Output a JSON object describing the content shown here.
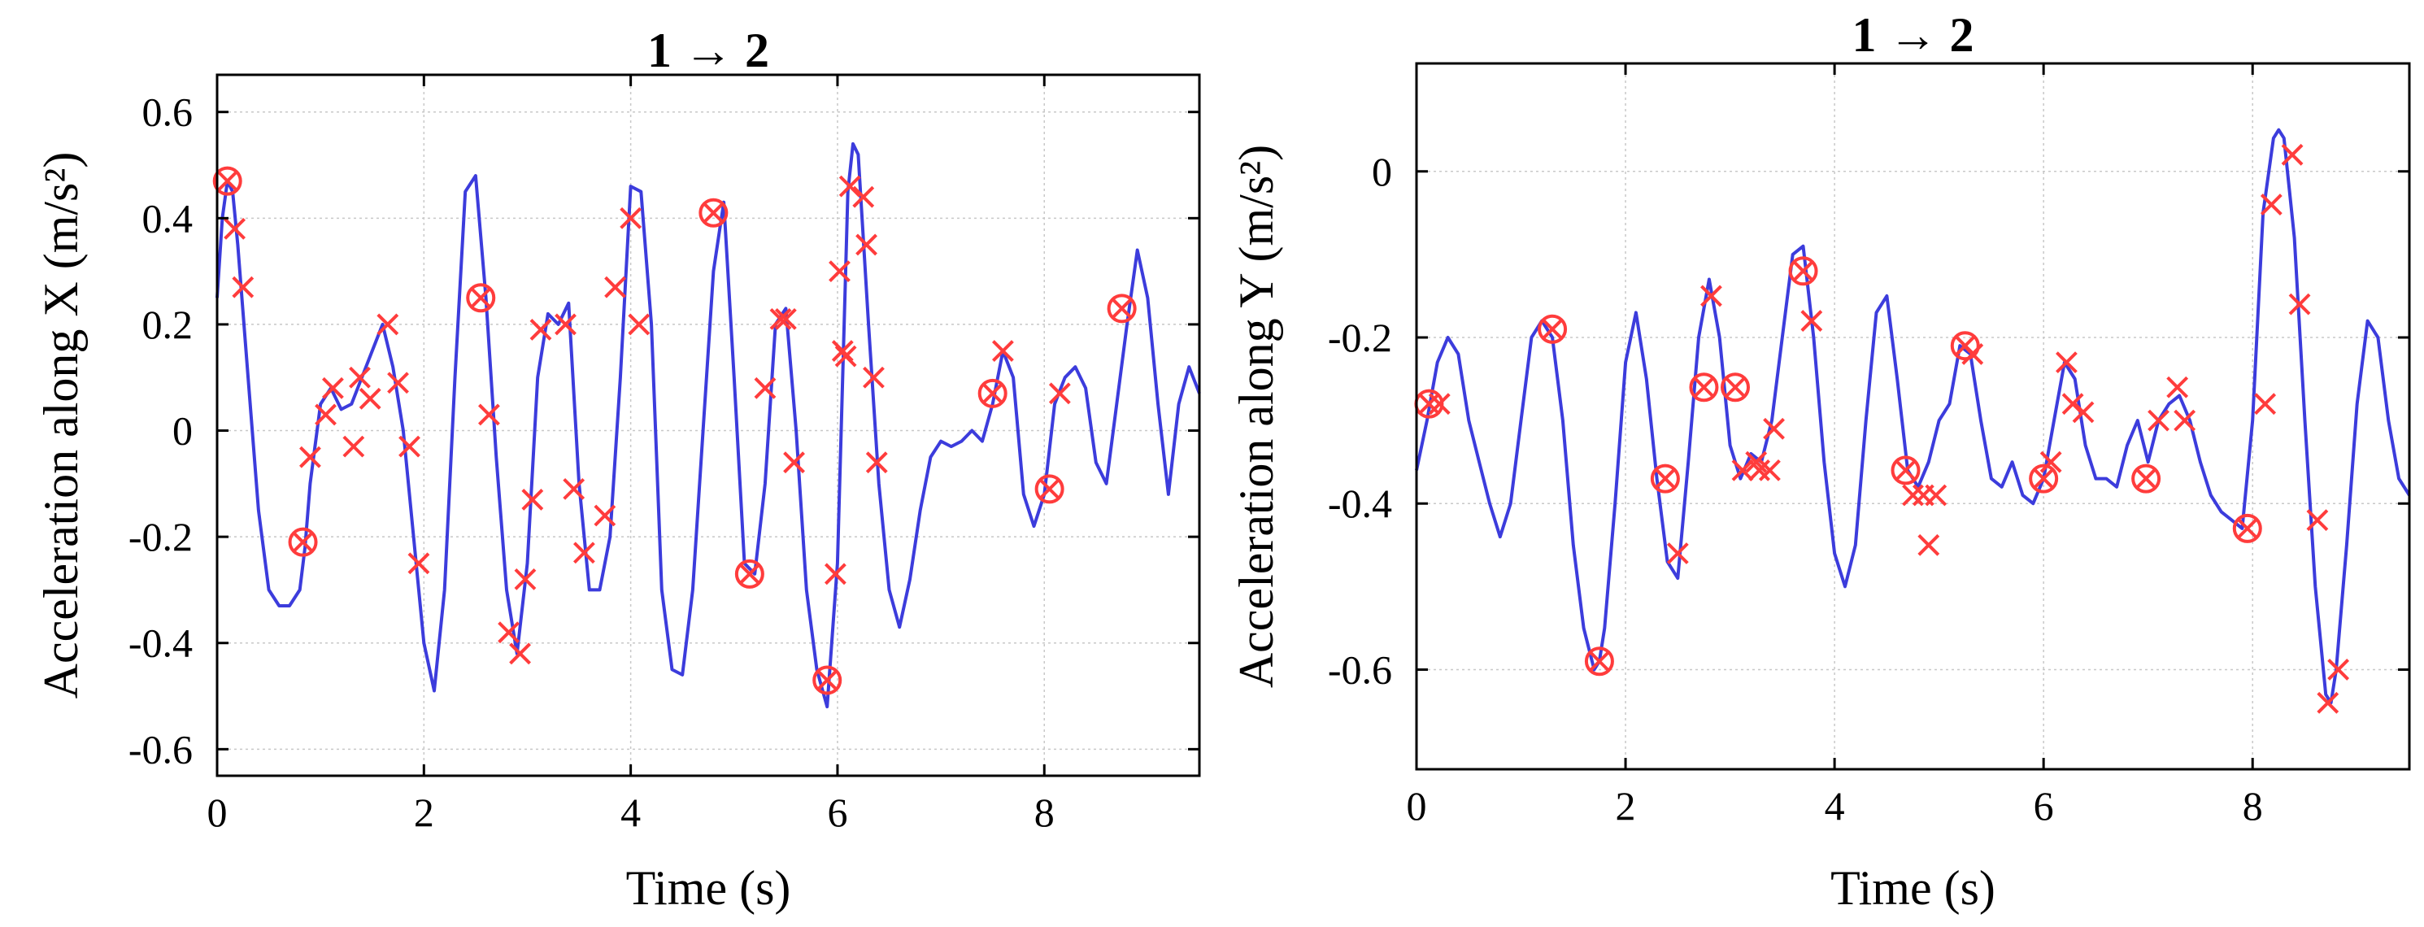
{
  "colors": {
    "line": "#3c3cdc",
    "marker": "#ff3c3c",
    "grid": "#c8c8c8",
    "axes": "#000000"
  },
  "chart_data": [
    {
      "type": "line",
      "title": "1 → 2",
      "xlabel": "Time (s)",
      "ylabel": "Acceleration along X (m/s²)",
      "xlim": [
        0,
        9.5
      ],
      "ylim": [
        -0.65,
        0.67
      ],
      "xticks": [
        0,
        2,
        4,
        6,
        8
      ],
      "xtick_labels": [
        "0",
        "2",
        "4",
        "6",
        "8"
      ],
      "yticks": [
        -0.6,
        -0.4,
        -0.2,
        0,
        0.2,
        0.4,
        0.6
      ],
      "ytick_labels": [
        "-0.6",
        "-0.4",
        "-0.2",
        "0",
        "0.2",
        "0.4",
        "0.6"
      ],
      "grid": true,
      "series": [
        {
          "style": "line",
          "x": [
            0,
            0.05,
            0.1,
            0.15,
            0.2,
            0.3,
            0.4,
            0.5,
            0.6,
            0.7,
            0.8,
            0.85,
            0.9,
            1.0,
            1.1,
            1.2,
            1.3,
            1.4,
            1.5,
            1.6,
            1.7,
            1.8,
            1.9,
            2.0,
            2.1,
            2.2,
            2.3,
            2.4,
            2.5,
            2.6,
            2.7,
            2.8,
            2.9,
            3.0,
            3.1,
            3.2,
            3.3,
            3.4,
            3.5,
            3.6,
            3.7,
            3.8,
            3.9,
            4.0,
            4.1,
            4.2,
            4.3,
            4.4,
            4.5,
            4.6,
            4.7,
            4.8,
            4.9,
            5.0,
            5.1,
            5.2,
            5.3,
            5.4,
            5.5,
            5.6,
            5.7,
            5.8,
            5.9,
            6.0,
            6.1,
            6.15,
            6.2,
            6.3,
            6.4,
            6.5,
            6.6,
            6.7,
            6.8,
            6.9,
            7.0,
            7.1,
            7.2,
            7.3,
            7.4,
            7.5,
            7.6,
            7.7,
            7.8,
            7.9,
            8.0,
            8.1,
            8.2,
            8.3,
            8.4,
            8.5,
            8.6,
            8.7,
            8.8,
            8.9,
            9.0,
            9.1,
            9.2,
            9.3,
            9.4,
            9.5
          ],
          "y": [
            0.25,
            0.4,
            0.47,
            0.45,
            0.35,
            0.1,
            -0.15,
            -0.3,
            -0.33,
            -0.33,
            -0.3,
            -0.22,
            -0.1,
            0.05,
            0.08,
            0.04,
            0.05,
            0.1,
            0.15,
            0.2,
            0.12,
            0.0,
            -0.2,
            -0.4,
            -0.49,
            -0.3,
            0.1,
            0.45,
            0.48,
            0.25,
            -0.05,
            -0.3,
            -0.42,
            -0.25,
            0.1,
            0.22,
            0.2,
            0.24,
            -0.1,
            -0.3,
            -0.3,
            -0.2,
            0.1,
            0.46,
            0.45,
            0.2,
            -0.3,
            -0.45,
            -0.46,
            -0.3,
            0.0,
            0.3,
            0.43,
            0.1,
            -0.25,
            -0.27,
            -0.1,
            0.2,
            0.23,
            0.0,
            -0.3,
            -0.45,
            -0.52,
            -0.25,
            0.45,
            0.54,
            0.52,
            0.2,
            -0.1,
            -0.3,
            -0.37,
            -0.28,
            -0.15,
            -0.05,
            -0.02,
            -0.03,
            -0.02,
            0.0,
            -0.02,
            0.05,
            0.15,
            0.1,
            -0.12,
            -0.18,
            -0.12,
            0.05,
            0.1,
            0.12,
            0.08,
            -0.06,
            -0.1,
            0.05,
            0.2,
            0.34,
            0.25,
            0.05,
            -0.12,
            0.05,
            0.12,
            0.07
          ]
        },
        {
          "style": "circle-x",
          "x": [
            0.1,
            0.83,
            2.55,
            4.8,
            5.15,
            5.9,
            7.5,
            8.05,
            8.75
          ],
          "y": [
            0.47,
            -0.21,
            0.25,
            0.41,
            -0.27,
            -0.47,
            0.07,
            -0.11,
            0.23
          ]
        },
        {
          "style": "x",
          "x": [
            0.17,
            0.25,
            0.9,
            1.05,
            1.12,
            1.32,
            1.38,
            1.48,
            1.65,
            1.75,
            1.86,
            1.95,
            2.63,
            2.82,
            2.93,
            2.98,
            3.05,
            3.13,
            3.37,
            3.45,
            3.55,
            3.75,
            3.85,
            4.0,
            4.08,
            5.3,
            5.45,
            5.5,
            5.58,
            5.98,
            6.02,
            6.05,
            6.08,
            6.12,
            6.25,
            6.28,
            6.35,
            6.38,
            7.6,
            8.15
          ],
          "y": [
            0.38,
            0.27,
            -0.05,
            0.03,
            0.08,
            -0.03,
            0.1,
            0.06,
            0.2,
            0.09,
            -0.03,
            -0.25,
            0.03,
            -0.38,
            -0.42,
            -0.28,
            -0.13,
            0.19,
            0.2,
            -0.11,
            -0.23,
            -0.16,
            0.27,
            0.4,
            0.2,
            0.08,
            0.21,
            0.21,
            -0.06,
            -0.27,
            0.3,
            0.15,
            0.14,
            0.46,
            0.44,
            0.35,
            0.1,
            -0.06,
            0.15,
            0.07
          ]
        }
      ]
    },
    {
      "type": "line",
      "title": "1 → 2",
      "xlabel": "Time (s)",
      "ylabel": "Acceleration along Y (m/s²)",
      "xlim": [
        0,
        9.5
      ],
      "ylim": [
        -0.72,
        0.13
      ],
      "xticks": [
        0,
        2,
        4,
        6,
        8
      ],
      "xtick_labels": [
        "0",
        "2",
        "4",
        "6",
        "8"
      ],
      "yticks": [
        -0.6,
        -0.4,
        -0.2,
        0
      ],
      "ytick_labels": [
        "-0.6",
        "-0.4",
        "-0.2",
        "0"
      ],
      "grid": true,
      "series": [
        {
          "style": "line",
          "x": [
            0,
            0.1,
            0.2,
            0.3,
            0.4,
            0.5,
            0.6,
            0.7,
            0.8,
            0.9,
            1.0,
            1.1,
            1.2,
            1.3,
            1.4,
            1.5,
            1.6,
            1.7,
            1.75,
            1.8,
            1.9,
            2.0,
            2.1,
            2.2,
            2.3,
            2.4,
            2.5,
            2.6,
            2.7,
            2.8,
            2.9,
            3.0,
            3.1,
            3.2,
            3.3,
            3.4,
            3.5,
            3.6,
            3.7,
            3.8,
            3.9,
            4.0,
            4.1,
            4.2,
            4.3,
            4.4,
            4.5,
            4.6,
            4.7,
            4.8,
            4.9,
            5.0,
            5.1,
            5.2,
            5.3,
            5.4,
            5.5,
            5.6,
            5.7,
            5.8,
            5.9,
            6.0,
            6.1,
            6.2,
            6.3,
            6.4,
            6.5,
            6.6,
            6.7,
            6.8,
            6.9,
            7.0,
            7.1,
            7.2,
            7.3,
            7.4,
            7.5,
            7.6,
            7.7,
            7.8,
            7.9,
            8.0,
            8.1,
            8.2,
            8.25,
            8.3,
            8.4,
            8.5,
            8.6,
            8.7,
            8.75,
            8.8,
            8.9,
            9.0,
            9.1,
            9.2,
            9.3,
            9.4,
            9.5
          ],
          "y": [
            -0.36,
            -0.3,
            -0.23,
            -0.2,
            -0.22,
            -0.3,
            -0.35,
            -0.4,
            -0.44,
            -0.4,
            -0.3,
            -0.2,
            -0.18,
            -0.2,
            -0.3,
            -0.45,
            -0.55,
            -0.6,
            -0.59,
            -0.55,
            -0.4,
            -0.23,
            -0.17,
            -0.25,
            -0.37,
            -0.47,
            -0.49,
            -0.35,
            -0.2,
            -0.13,
            -0.2,
            -0.33,
            -0.37,
            -0.34,
            -0.35,
            -0.3,
            -0.2,
            -0.1,
            -0.09,
            -0.2,
            -0.35,
            -0.46,
            -0.5,
            -0.45,
            -0.3,
            -0.17,
            -0.15,
            -0.25,
            -0.36,
            -0.38,
            -0.35,
            -0.3,
            -0.28,
            -0.21,
            -0.22,
            -0.3,
            -0.37,
            -0.38,
            -0.35,
            -0.39,
            -0.4,
            -0.37,
            -0.3,
            -0.23,
            -0.25,
            -0.33,
            -0.37,
            -0.37,
            -0.38,
            -0.33,
            -0.3,
            -0.35,
            -0.3,
            -0.28,
            -0.27,
            -0.3,
            -0.35,
            -0.39,
            -0.41,
            -0.42,
            -0.43,
            -0.3,
            -0.05,
            0.04,
            0.05,
            0.04,
            -0.08,
            -0.3,
            -0.5,
            -0.63,
            -0.64,
            -0.6,
            -0.45,
            -0.28,
            -0.18,
            -0.2,
            -0.3,
            -0.37,
            -0.39
          ]
        },
        {
          "style": "circle-x",
          "x": [
            0.12,
            1.3,
            1.75,
            2.38,
            2.75,
            3.05,
            3.7,
            4.68,
            5.25,
            6.0,
            6.98,
            7.95
          ],
          "y": [
            -0.28,
            -0.19,
            -0.59,
            -0.37,
            -0.26,
            -0.26,
            -0.12,
            -0.36,
            -0.21,
            -0.37,
            -0.37,
            -0.43
          ]
        },
        {
          "style": "x",
          "x": [
            0.22,
            2.5,
            2.82,
            3.12,
            3.25,
            3.28,
            3.38,
            3.42,
            3.78,
            4.75,
            4.85,
            4.9,
            4.97,
            5.32,
            6.07,
            6.22,
            6.28,
            6.38,
            7.1,
            7.28,
            7.35,
            8.12,
            8.18,
            8.38,
            8.45,
            8.62,
            8.72,
            8.82
          ],
          "y": [
            -0.28,
            -0.46,
            -0.15,
            -0.36,
            -0.35,
            -0.36,
            -0.36,
            -0.31,
            -0.18,
            -0.39,
            -0.39,
            -0.45,
            -0.39,
            -0.22,
            -0.35,
            -0.23,
            -0.28,
            -0.29,
            -0.3,
            -0.26,
            -0.3,
            -0.28,
            -0.04,
            0.02,
            -0.16,
            -0.42,
            -0.64,
            -0.6
          ]
        }
      ]
    }
  ]
}
